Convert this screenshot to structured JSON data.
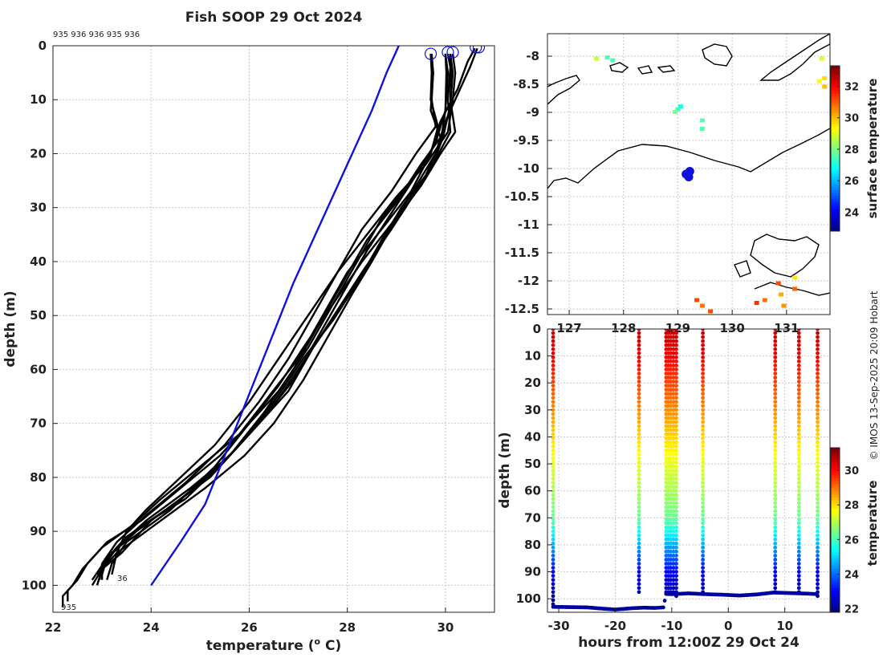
{
  "chart_data": [
    {
      "type": "line",
      "title": "Fish SOOP 29 Oct 2024",
      "xlabel": "temperature (o C)",
      "ylabel": "depth (m)",
      "xlim": [
        22,
        31
      ],
      "ylim": [
        105,
        0
      ],
      "xticks": [
        "22",
        "24",
        "26",
        "28",
        "30"
      ],
      "yticks": [
        "0",
        "10",
        "20",
        "30",
        "40",
        "50",
        "60",
        "70",
        "80",
        "90",
        "100"
      ],
      "top_label": "935 936 936 935 936",
      "end_labels": [
        "36",
        "935"
      ],
      "reference_profile": {
        "color": "#1111dd",
        "temperature": [
          29.05,
          28.8,
          28.5,
          28.1,
          27.7,
          27.3,
          26.9,
          26.55,
          26.2,
          25.85,
          25.5,
          25.1,
          24.6,
          24.0
        ],
        "depth": [
          0,
          5,
          12,
          20,
          28,
          36,
          44,
          52,
          60,
          68,
          76,
          85,
          92,
          100
        ]
      },
      "profiles": [
        {
          "temperature": [
            29.7,
            29.72,
            29.7,
            29.85,
            29.7,
            29.3,
            28.7,
            28.2,
            27.7,
            27.2,
            26.6,
            26.0,
            25.3,
            24.4,
            23.5,
            23.2,
            23.1
          ],
          "depth": [
            1.5,
            5,
            10,
            15,
            20,
            25,
            32,
            40,
            48,
            56,
            64,
            70,
            78,
            86,
            92,
            96,
            99
          ]
        },
        {
          "temperature": [
            30.1,
            30.12,
            30.1,
            30.2,
            29.9,
            29.5,
            29.0,
            28.5,
            28.1,
            27.6,
            27.1,
            26.5,
            25.9,
            25.1,
            24.2,
            23.3,
            22.9
          ],
          "depth": [
            1.5,
            4,
            10,
            16,
            20,
            26,
            32,
            40,
            46,
            54,
            62,
            70,
            76,
            82,
            88,
            94,
            98
          ]
        },
        {
          "temperature": [
            30.0,
            30.05,
            30.0,
            29.9,
            29.6,
            29.1,
            28.6,
            28.1,
            27.6,
            27.0,
            26.4,
            25.7,
            24.9,
            24.0,
            23.4,
            23.0,
            22.8
          ],
          "depth": [
            1.5,
            5,
            12,
            18,
            24,
            30,
            38,
            45,
            52,
            60,
            68,
            75,
            82,
            88,
            94,
            97,
            100
          ]
        },
        {
          "temperature": [
            30.15,
            30.2,
            30.15,
            30.05,
            29.6,
            29.0,
            28.4,
            27.8,
            27.2,
            26.6,
            26.0,
            25.3,
            24.6,
            23.9,
            23.5,
            23.3,
            23.2
          ],
          "depth": [
            1.5,
            5,
            10,
            16,
            22,
            28,
            35,
            42,
            50,
            58,
            66,
            74,
            80,
            86,
            90,
            94,
            98
          ]
        },
        {
          "temperature": [
            30.65,
            30.5,
            30.3,
            30.0,
            29.8,
            29.4,
            28.9,
            28.3,
            27.7,
            27.1,
            26.6,
            26.0,
            25.4,
            24.6,
            23.8,
            23.1,
            22.7,
            22.5,
            22.3,
            22.3
          ],
          "depth": [
            0.5,
            4,
            8,
            14,
            20,
            26,
            33,
            40,
            48,
            56,
            63,
            70,
            76,
            82,
            88,
            92,
            96,
            99,
            101,
            103
          ]
        },
        {
          "temperature": [
            30.6,
            30.45,
            30.25,
            29.9,
            29.7,
            29.3,
            28.7,
            28.0,
            27.5,
            27.0,
            26.4,
            25.8,
            25.0,
            24.2,
            23.6,
            23.0,
            22.6,
            22.4,
            22.2,
            22.2
          ],
          "depth": [
            0.5,
            3,
            8,
            14,
            20,
            27,
            34,
            42,
            50,
            58,
            65,
            72,
            78,
            84,
            89,
            93,
            97,
            100,
            102,
            104
          ]
        },
        {
          "temperature": [
            29.7,
            29.75,
            29.7,
            29.9,
            29.5,
            29.0,
            28.4,
            27.9,
            27.4,
            26.9,
            26.3,
            25.6,
            24.8,
            23.9,
            23.3,
            23.0,
            22.9
          ],
          "depth": [
            1.5,
            5,
            12,
            17,
            22,
            29,
            36,
            44,
            52,
            60,
            68,
            76,
            82,
            88,
            93,
            97,
            100
          ]
        },
        {
          "temperature": [
            30.05,
            30.1,
            30.05,
            30.1,
            29.8,
            29.4,
            28.9,
            28.3,
            27.8,
            27.3,
            26.8,
            26.1,
            25.4,
            24.6,
            23.7,
            23.1,
            22.8
          ],
          "depth": [
            1.5,
            4,
            10,
            16,
            21,
            27,
            34,
            42,
            49,
            56,
            64,
            71,
            78,
            84,
            90,
            95,
            99
          ]
        },
        {
          "temperature": [
            30.1,
            30.15,
            30.1,
            29.95,
            29.7,
            29.2,
            28.7,
            28.2,
            27.7,
            27.1,
            26.5,
            25.9,
            25.2,
            24.3,
            23.5,
            23.1,
            23.0
          ],
          "depth": [
            1.5,
            5,
            11,
            17,
            23,
            29,
            36,
            44,
            51,
            58,
            66,
            73,
            80,
            86,
            91,
            95,
            98
          ]
        },
        {
          "temperature": [
            30.0,
            30.02,
            30.0,
            29.8,
            29.4,
            28.9,
            28.4,
            27.9,
            27.4,
            26.9,
            26.2,
            25.5,
            24.7,
            23.8,
            23.2,
            23.0,
            23.0
          ],
          "depth": [
            1.5,
            5,
            12,
            18,
            24,
            31,
            38,
            46,
            54,
            62,
            70,
            77,
            84,
            89,
            94,
            97,
            99
          ]
        },
        {
          "temperature": [
            29.72,
            29.75,
            29.72,
            29.8,
            29.4,
            28.9,
            28.3,
            27.8,
            27.3,
            26.8,
            26.2,
            25.5,
            24.7,
            23.9,
            23.3,
            23.0,
            22.95
          ],
          "depth": [
            1.5,
            5,
            10,
            15,
            20,
            27,
            34,
            42,
            50,
            58,
            66,
            74,
            81,
            87,
            92,
            96,
            99
          ]
        }
      ],
      "surface_markers": [
        {
          "temperature": 29.7,
          "depth": 1.5
        },
        {
          "temperature": 30.05,
          "depth": 1.2
        },
        {
          "temperature": 30.15,
          "depth": 1.2
        },
        {
          "temperature": 30.62,
          "depth": 0.3
        },
        {
          "temperature": 30.68,
          "depth": 0.3
        }
      ]
    },
    {
      "type": "scatter",
      "name": "map",
      "colorbar_label": "surface temperature",
      "colorbar_range": [
        22.8,
        33.3
      ],
      "colorbar_ticks": [
        "24",
        "26",
        "28",
        "30",
        "32"
      ],
      "xlim": [
        126.6,
        131.8
      ],
      "ylim": [
        -12.6,
        -7.6
      ],
      "xticks": [
        {
          "value": 127,
          "label": "127"
        },
        {
          "value": 128,
          "label": "128"
        },
        {
          "value": 129,
          "label": "129"
        },
        {
          "value": 130,
          "label": "130"
        },
        {
          "value": 131,
          "label": "131"
        }
      ],
      "yticks": [
        "-8",
        "-8.5",
        "-9",
        "-9.5",
        "-10",
        "-10.5",
        "-11",
        "-11.5",
        "-12",
        "-12.5"
      ],
      "track_points": [
        {
          "lon": 129.15,
          "lat": -10.1
        },
        {
          "lon": 129.22,
          "lat": -10.05
        },
        {
          "lon": 129.2,
          "lat": -10.15
        }
      ],
      "sst_patches": [
        {
          "lon": 127.5,
          "lat": -8.05,
          "temp": 28.8
        },
        {
          "lon": 127.7,
          "lat": -8.03,
          "temp": 27.5
        },
        {
          "lon": 127.8,
          "lat": -8.08,
          "temp": 27.5
        },
        {
          "lon": 129.0,
          "lat": -8.95,
          "temp": 27.4
        },
        {
          "lon": 128.95,
          "lat": -9.0,
          "temp": 28.0
        },
        {
          "lon": 129.05,
          "lat": -8.9,
          "temp": 27.0
        },
        {
          "lon": 129.45,
          "lat": -9.15,
          "temp": 27.6
        },
        {
          "lon": 129.45,
          "lat": -9.3,
          "temp": 27.6
        },
        {
          "lon": 131.65,
          "lat": -8.05,
          "temp": 29.0
        },
        {
          "lon": 131.7,
          "lat": -8.4,
          "temp": 29.7
        },
        {
          "lon": 131.7,
          "lat": -8.55,
          "temp": 30.0
        },
        {
          "lon": 131.6,
          "lat": -8.45,
          "temp": 29.3
        },
        {
          "lon": 130.85,
          "lat": -12.05,
          "temp": 31.2
        },
        {
          "lon": 131.15,
          "lat": -11.95,
          "temp": 29.6
        },
        {
          "lon": 131.15,
          "lat": -12.15,
          "temp": 31.0
        },
        {
          "lon": 130.9,
          "lat": -12.25,
          "temp": 30.2
        },
        {
          "lon": 130.45,
          "lat": -12.4,
          "temp": 31.5
        },
        {
          "lon": 130.6,
          "lat": -12.35,
          "temp": 30.8
        },
        {
          "lon": 130.95,
          "lat": -12.45,
          "temp": 30.5
        },
        {
          "lon": 129.35,
          "lat": -12.35,
          "temp": 31.3
        },
        {
          "lon": 129.45,
          "lat": -12.45,
          "temp": 30.8
        },
        {
          "lon": 129.6,
          "lat": -12.55,
          "temp": 31.2
        }
      ]
    },
    {
      "type": "scatter",
      "name": "section",
      "xlabel": "hours from 12:00Z 29 Oct 24",
      "ylabel": "depth (m)",
      "colorbar_label": "temperature",
      "colorbar_range": [
        21.8,
        31.3
      ],
      "colorbar_ticks": [
        "22",
        "24",
        "26",
        "28",
        "30"
      ],
      "xlim": [
        -32,
        18
      ],
      "ylim": [
        105,
        0
      ],
      "xticks": [
        "-30",
        "-20",
        "-10",
        "0",
        "10"
      ],
      "yticks": [
        "0",
        "10",
        "20",
        "30",
        "40",
        "50",
        "60",
        "70",
        "80",
        "90",
        "100"
      ],
      "casts": [
        {
          "hours": -31.0,
          "bottom": 102
        },
        {
          "hours": -15.8,
          "bottom": 98
        },
        {
          "hours": -11.0,
          "bottom": 98
        },
        {
          "hours": -10.6,
          "bottom": 98
        },
        {
          "hours": -10.2,
          "bottom": 98
        },
        {
          "hours": -9.7,
          "bottom": 98
        },
        {
          "hours": -9.2,
          "bottom": 99
        },
        {
          "hours": -4.5,
          "bottom": 98
        },
        {
          "hours": 8.3,
          "bottom": 98
        },
        {
          "hours": 12.5,
          "bottom": 98
        },
        {
          "hours": 15.8,
          "bottom": 99
        }
      ],
      "bottom_track": {
        "hours": [
          -31,
          -28,
          -25,
          -22,
          -20,
          -17,
          -15,
          -13,
          -11.5,
          -11,
          -10,
          -7,
          -4,
          -1,
          2,
          5,
          8,
          11,
          14,
          16
        ],
        "depth": [
          103,
          103.1,
          103.2,
          103.7,
          104,
          103.5,
          103.3,
          103.4,
          103.2,
          98.2,
          98.3,
          98.0,
          98.3,
          98.5,
          98.8,
          98.4,
          97.7,
          97.9,
          98.1,
          98.3
        ]
      }
    }
  ],
  "attribution": "© IMOS 13-Sep-2025 20:09 Hobart"
}
